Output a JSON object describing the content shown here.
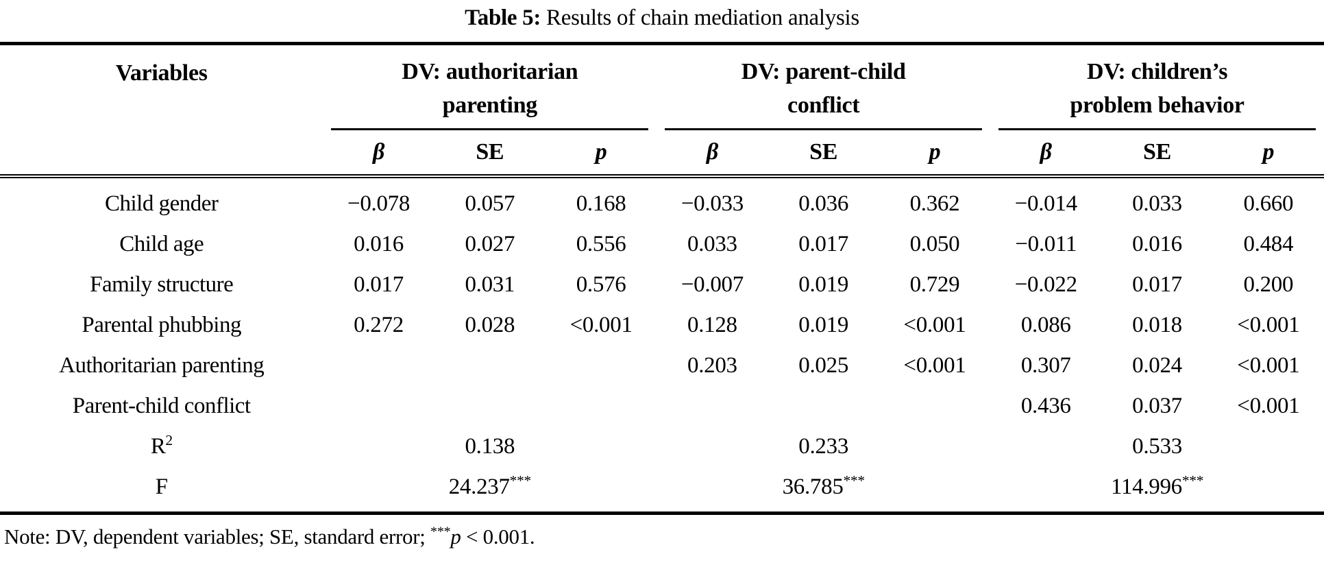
{
  "title": {
    "label": "Table 5:",
    "text": "Results of chain mediation analysis"
  },
  "table": {
    "variables_header": "Variables",
    "groups": [
      {
        "line1": "DV: authoritarian",
        "line2": "parenting"
      },
      {
        "line1": "DV: parent-child",
        "line2": "conflict"
      },
      {
        "line1": "DV: children’s",
        "line2": "problem behavior"
      }
    ],
    "subheaders": {
      "beta": "β",
      "se": "SE",
      "p": "p"
    },
    "rows": [
      {
        "label": "Child gender",
        "cells": [
          "−0.078",
          "0.057",
          "0.168",
          "−0.033",
          "0.036",
          "0.362",
          "−0.014",
          "0.033",
          "0.660"
        ]
      },
      {
        "label": "Child age",
        "cells": [
          "0.016",
          "0.027",
          "0.556",
          "0.033",
          "0.017",
          "0.050",
          "−0.011",
          "0.016",
          "0.484"
        ]
      },
      {
        "label": "Family structure",
        "cells": [
          "0.017",
          "0.031",
          "0.576",
          "−0.007",
          "0.019",
          "0.729",
          "−0.022",
          "0.017",
          "0.200"
        ]
      },
      {
        "label": "Parental phubbing",
        "cells": [
          "0.272",
          "0.028",
          "<0.001",
          "0.128",
          "0.019",
          "<0.001",
          "0.086",
          "0.018",
          "<0.001"
        ]
      },
      {
        "label": "Authoritarian parenting",
        "cells": [
          "",
          "",
          "",
          "0.203",
          "0.025",
          "<0.001",
          "0.307",
          "0.024",
          "<0.001"
        ]
      },
      {
        "label": "Parent-child conflict",
        "cells": [
          "",
          "",
          "",
          "",
          "",
          "",
          "0.436",
          "0.037",
          "<0.001"
        ]
      }
    ],
    "r2_row": {
      "label_base": "R",
      "label_sup": "2",
      "values": [
        "0.138",
        "0.233",
        "0.533"
      ]
    },
    "f_row": {
      "label": "F",
      "values": [
        {
          "num": "24.237",
          "stars": "***"
        },
        {
          "num": "36.785",
          "stars": "***"
        },
        {
          "num": "114.996",
          "stars": "***"
        }
      ]
    }
  },
  "note": {
    "prefix": "Note: DV, dependent variables; SE, standard error; ",
    "stars": "***",
    "p_symbol": "p",
    "suffix": " < 0.001."
  }
}
